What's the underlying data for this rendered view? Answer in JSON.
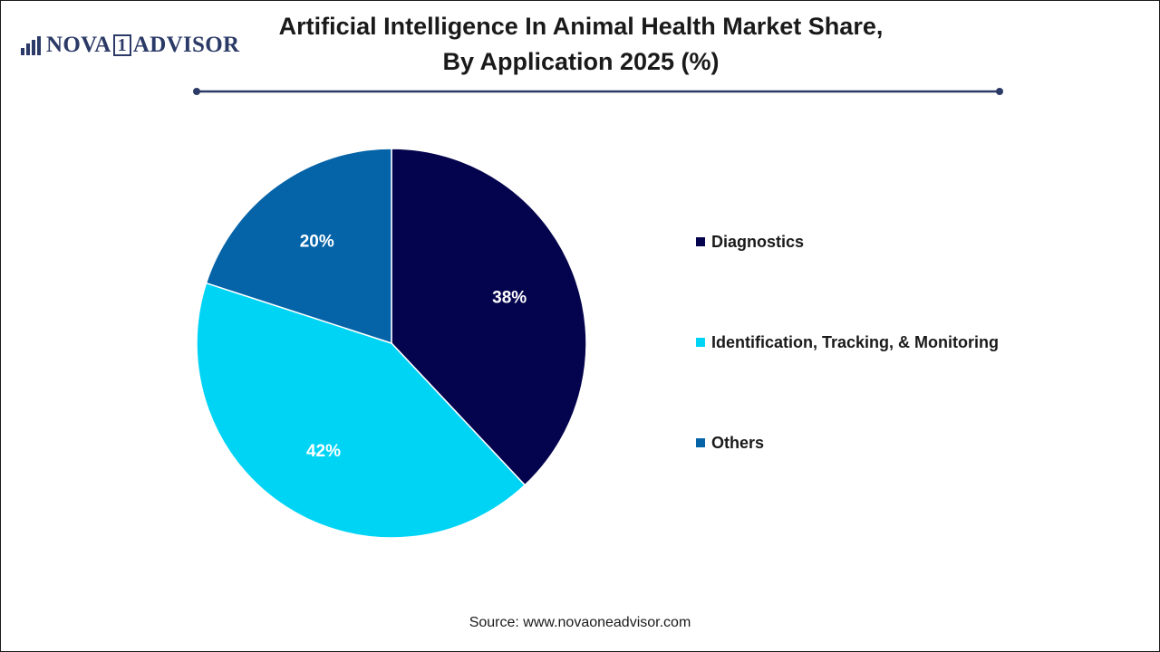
{
  "brand": {
    "part1": "NOVA",
    "part2": "1",
    "part3": "ADVISOR"
  },
  "title": "Artificial Intelligence In Animal Health Market Share, By Application 2025 (%)",
  "source": "Source: www.novaoneadvisor.com",
  "colors": {
    "title_rule": "#2b3a67",
    "text": "#1a1a1a"
  },
  "chart_data": {
    "type": "pie",
    "title": "Artificial Intelligence In Animal Health Market Share, By Application 2025 (%)",
    "start_angle_deg": 0,
    "direction": "clockwise",
    "legend_position": "right",
    "slices": [
      {
        "label": "Diagnostics",
        "value": 38,
        "display": "38%",
        "color": "#04034d"
      },
      {
        "label": "Identification, Tracking, & Monitoring",
        "value": 42,
        "display": "42%",
        "color": "#00d4f5"
      },
      {
        "label": "Others",
        "value": 20,
        "display": "20%",
        "color": "#0563a8"
      }
    ]
  }
}
